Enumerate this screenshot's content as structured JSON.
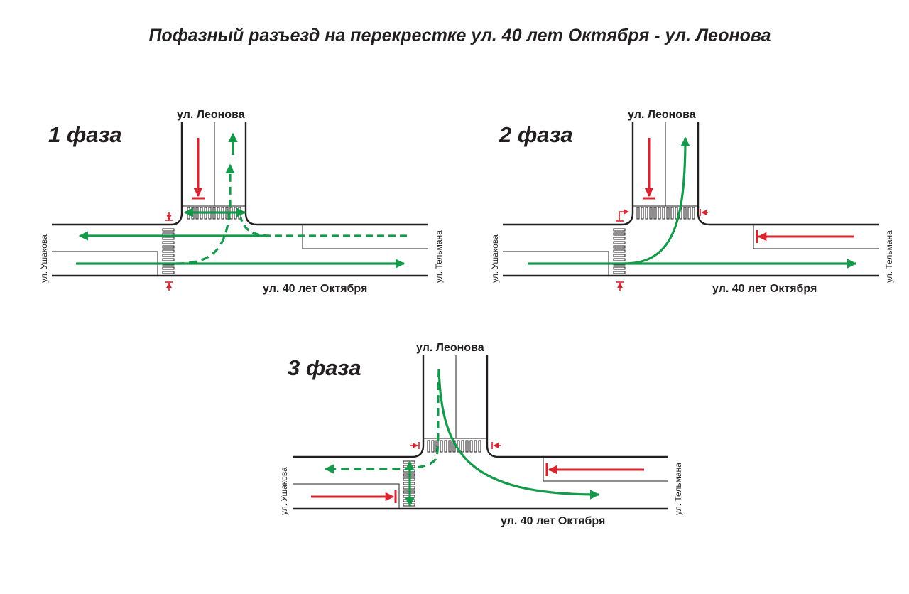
{
  "title": "Пофазный разъезд на перекрестке ул. 40 лет Октября - ул. Леонова",
  "colors": {
    "go": "#149a4a",
    "stop": "#d9232e",
    "road": "#231f20"
  },
  "phases": [
    {
      "label": "1 фаза",
      "streets": {
        "north": "ул. Леонова",
        "west": "ул. Ушакова",
        "east": "ул. Тельмана",
        "main": "ул. 40 лет Октября"
      }
    },
    {
      "label": "2 фаза",
      "streets": {
        "north": "ул. Леонова",
        "west": "ул. Ушакова",
        "east": "ул. Тельмана",
        "main": "ул. 40 лет Октября"
      }
    },
    {
      "label": "3 фаза",
      "streets": {
        "north": "ул. Леонова",
        "west": "ул. Ушакова",
        "east": "ул. Тельмана",
        "main": "ул. 40 лет Октября"
      }
    }
  ]
}
